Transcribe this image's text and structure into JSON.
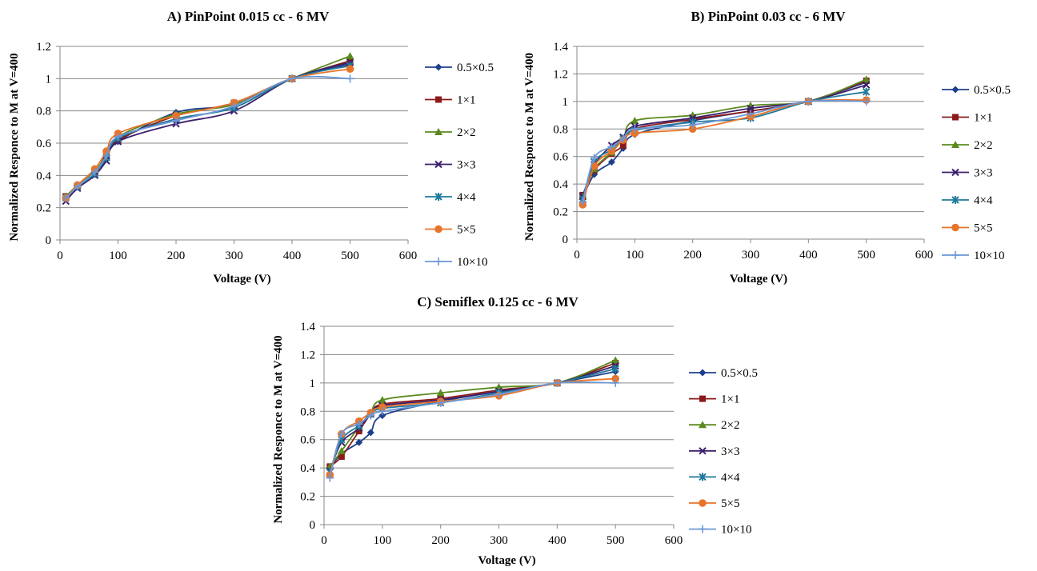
{
  "colors": {
    "series": [
      "#1F3F8C",
      "#8B1A1A",
      "#5A8A1E",
      "#3C1F6B",
      "#1F7A9C",
      "#E8742A",
      "#6B97D6"
    ],
    "grid": "#888888",
    "axis": "#888888"
  },
  "chart_data": [
    {
      "type": "line",
      "title": "A) PinPoint 0.015 cc - 6 MV",
      "xlabel": "Voltage (V)",
      "ylabel": "Normalized Responce to M at V=400",
      "xlim": [
        0,
        600
      ],
      "ylim": [
        0,
        1.2
      ],
      "xticks": [
        0,
        100,
        200,
        300,
        400,
        500,
        600
      ],
      "yticks": [
        0,
        0.2,
        0.4,
        0.6,
        0.8,
        1,
        1.2
      ],
      "grid": "horizontal",
      "legend_position": "right",
      "x": [
        10,
        30,
        60,
        80,
        100,
        200,
        300,
        400,
        500
      ],
      "series": [
        {
          "name": "0.5×0.5",
          "marker": "diamond",
          "values": [
            0.26,
            0.33,
            0.41,
            0.5,
            0.61,
            0.79,
            0.84,
            1.0,
            1.09
          ]
        },
        {
          "name": "1×1",
          "marker": "square",
          "values": [
            0.27,
            0.33,
            0.42,
            0.53,
            0.62,
            0.77,
            0.85,
            1.0,
            1.11
          ]
        },
        {
          "name": "2×2",
          "marker": "triangle",
          "values": [
            0.27,
            0.34,
            0.43,
            0.52,
            0.64,
            0.78,
            0.84,
            1.0,
            1.14
          ]
        },
        {
          "name": "3×3",
          "marker": "x",
          "values": [
            0.24,
            0.32,
            0.4,
            0.49,
            0.61,
            0.72,
            0.8,
            1.0,
            1.1
          ]
        },
        {
          "name": "4×4",
          "marker": "star",
          "values": [
            0.26,
            0.33,
            0.41,
            0.51,
            0.63,
            0.75,
            0.82,
            1.0,
            1.08
          ]
        },
        {
          "name": "5×5",
          "marker": "circle",
          "values": [
            0.26,
            0.34,
            0.44,
            0.55,
            0.66,
            0.77,
            0.85,
            1.0,
            1.06
          ]
        },
        {
          "name": "10×10",
          "marker": "plus",
          "values": [
            0.26,
            0.33,
            0.42,
            0.52,
            0.64,
            0.74,
            0.83,
            1.0,
            1.0
          ]
        }
      ]
    },
    {
      "type": "line",
      "title": "B) PinPoint 0.03 cc - 6 MV",
      "xlabel": "Voltage (V)",
      "ylabel": "Normalized Responce to M at V=400",
      "xlim": [
        0,
        600
      ],
      "ylim": [
        0,
        1.4
      ],
      "xticks": [
        0,
        100,
        200,
        300,
        400,
        500,
        600
      ],
      "yticks": [
        0,
        0.2,
        0.4,
        0.6,
        0.8,
        1,
        1.2,
        1.4
      ],
      "grid": "horizontal",
      "legend_position": "right",
      "x": [
        10,
        30,
        60,
        80,
        100,
        200,
        300,
        400,
        500
      ],
      "series": [
        {
          "name": "0.5×0.5",
          "marker": "diamond",
          "values": [
            0.3,
            0.47,
            0.56,
            0.66,
            0.76,
            0.86,
            0.93,
            1.0,
            1.14
          ]
        },
        {
          "name": "1×1",
          "marker": "square",
          "values": [
            0.32,
            0.5,
            0.62,
            0.68,
            0.8,
            0.87,
            0.93,
            1.0,
            1.15
          ]
        },
        {
          "name": "2×2",
          "marker": "triangle",
          "values": [
            0.31,
            0.51,
            0.63,
            0.73,
            0.86,
            0.9,
            0.97,
            1.0,
            1.16
          ]
        },
        {
          "name": "3×3",
          "marker": "x",
          "values": [
            0.31,
            0.54,
            0.68,
            0.74,
            0.82,
            0.88,
            0.95,
            1.0,
            1.12
          ]
        },
        {
          "name": "4×4",
          "marker": "star",
          "values": [
            0.29,
            0.56,
            0.65,
            0.73,
            0.79,
            0.85,
            0.88,
            1.0,
            1.07
          ]
        },
        {
          "name": "5×5",
          "marker": "circle",
          "values": [
            0.25,
            0.53,
            0.64,
            0.72,
            0.77,
            0.8,
            0.89,
            1.0,
            1.01
          ]
        },
        {
          "name": "10×10",
          "marker": "plus",
          "values": [
            0.27,
            0.59,
            0.67,
            0.73,
            0.8,
            0.83,
            0.91,
            1.0,
            1.0
          ]
        }
      ]
    },
    {
      "type": "line",
      "title": "C) Semiflex 0.125 cc - 6 MV",
      "xlabel": "Voltage (V)",
      "ylabel": "Normalized Responce to M at V=400",
      "xlim": [
        0,
        600
      ],
      "ylim": [
        0,
        1.4
      ],
      "xticks": [
        0,
        100,
        200,
        300,
        400,
        500,
        600
      ],
      "yticks": [
        0,
        0.2,
        0.4,
        0.6,
        0.8,
        1,
        1.2,
        1.4
      ],
      "grid": "horizontal",
      "legend_position": "right",
      "x": [
        10,
        30,
        60,
        80,
        100,
        200,
        300,
        400,
        500
      ],
      "series": [
        {
          "name": "0.5×0.5",
          "marker": "diamond",
          "values": [
            0.4,
            0.5,
            0.58,
            0.65,
            0.77,
            0.87,
            0.94,
            1.0,
            1.08
          ]
        },
        {
          "name": "1×1",
          "marker": "square",
          "values": [
            0.41,
            0.48,
            0.66,
            0.78,
            0.85,
            0.89,
            0.95,
            1.0,
            1.14
          ]
        },
        {
          "name": "2×2",
          "marker": "triangle",
          "values": [
            0.41,
            0.52,
            0.69,
            0.79,
            0.88,
            0.93,
            0.97,
            1.0,
            1.16
          ]
        },
        {
          "name": "3×3",
          "marker": "x",
          "values": [
            0.38,
            0.58,
            0.68,
            0.78,
            0.84,
            0.88,
            0.94,
            1.0,
            1.12
          ]
        },
        {
          "name": "4×4",
          "marker": "star",
          "values": [
            0.37,
            0.6,
            0.7,
            0.78,
            0.82,
            0.86,
            0.93,
            1.0,
            1.1
          ]
        },
        {
          "name": "5×5",
          "marker": "circle",
          "values": [
            0.35,
            0.64,
            0.73,
            0.79,
            0.83,
            0.87,
            0.91,
            1.0,
            1.03
          ]
        },
        {
          "name": "10×10",
          "marker": "plus",
          "values": [
            0.33,
            0.64,
            0.71,
            0.77,
            0.8,
            0.86,
            0.92,
            1.0,
            1.0
          ]
        }
      ]
    }
  ]
}
